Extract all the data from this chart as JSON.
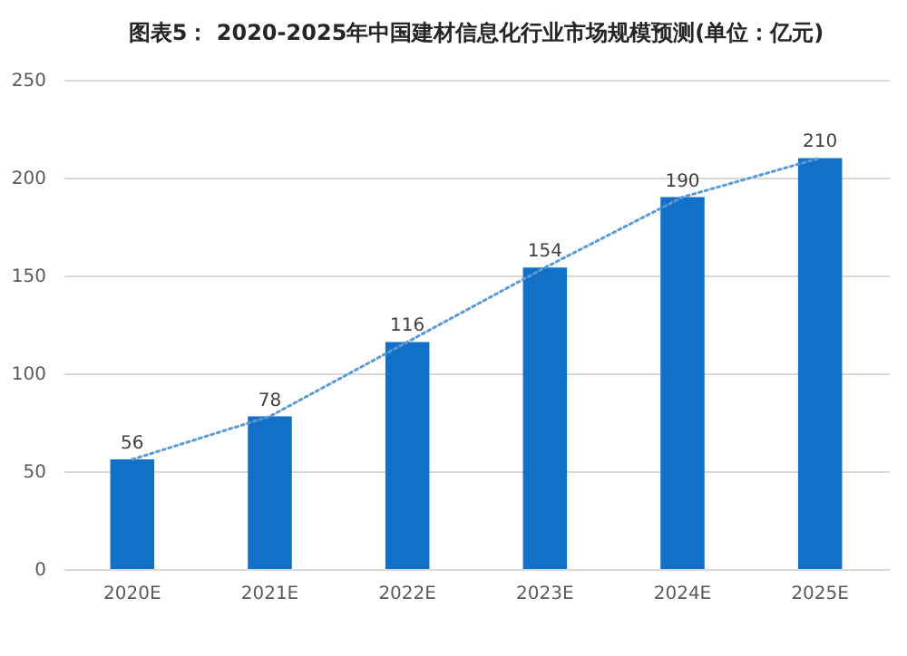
{
  "chart_data": {
    "type": "bar",
    "title": "图表5： 2020-2025年中国建材信息化行业市场规模预测(单位：亿元)",
    "categories": [
      "2020E",
      "2021E",
      "2022E",
      "2023E",
      "2024E",
      "2025E"
    ],
    "series": [
      {
        "color": "#1270c6",
        "values": [
          56,
          78,
          116,
          154,
          190,
          210
        ],
        "value_labels": [
          "56",
          "78",
          "116",
          "154",
          "190",
          "210"
        ]
      },
      {
        "type": "line",
        "color": "#5b9bd5",
        "line_style": "dotted",
        "values": [
          56,
          78,
          116,
          154,
          190,
          210
        ]
      }
    ],
    "ylim": [
      0,
      250
    ],
    "yticks": [
      0,
      50,
      100,
      150,
      200,
      250
    ],
    "grid": "y"
  }
}
